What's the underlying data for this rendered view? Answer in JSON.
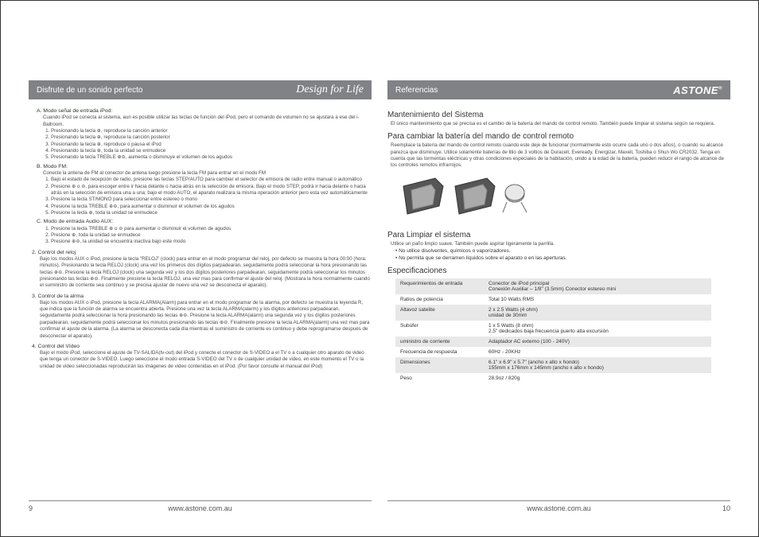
{
  "left": {
    "headerTitle": "Disfrute de un sonido perfecto",
    "headerScript": "Design for Life",
    "modeA": {
      "label": "A. Modo señal de entrada iPod:",
      "desc": "Cuando iPod se conecta al sistema, aun es posible utilizar las teclas de función del iPod, pero el comando de volumen no se ajustara a ese del i-Ballroom.",
      "items": [
        "Presionando la tecla ⊕, reproduce la canción anterior",
        "Presionando la tecla ⊕, reproduce la canción posterior",
        "Presionando la tecla ⊕, reproduce o pausa el iPod",
        "Presionando la tecla ⊕, toda la unidad se enmudece",
        "Presionando la tecla TREBLE ⊕⊖, aumenta o disminuye el volumen de los agudos"
      ]
    },
    "modeB": {
      "label": "B. Modo FM:",
      "desc": "Conecte la antena de FM al conector de antena luego presione la tecla FM para entrar en el modo FM",
      "items": [
        "Bajo el estado de recepción de radio, presione las teclas STEP/AUTO para cambiar el selector de emisora de radio entre manual o automático",
        "Presione ⊕ o ⊖, para escoger entre ir hacia delante o hacia atrás en la selección de emisora. Bajo el modo STEP, podrá ir hacia delante o hacia atrás en la selección de emisora una a una; bajo el modo AUTO, el aparato realizara la misma operación anterior pero esta vez automáticamente",
        "Presione la tecla ST/MONO para seleccionar entre estereo o mono",
        "Presione la tecla TREBLE ⊕⊖, para aumentar o disminuir el volumen de los agudos",
        "Presione la tecla ⊕, toda la unidad se enmudece"
      ]
    },
    "modeC": {
      "label": "C. Modo de entrada Audio AUX:",
      "items": [
        "Presione la tecla TREBLE ⊕ o ⊖ para aumentar o disminuir el volumen de agudos",
        "Presione ⊕, toda la unidad se enmudece",
        "Presione ⊕⊖, la unidad se encuentra inactiva bajo este modo"
      ]
    },
    "sec2": {
      "label": "2. Control del reloj",
      "desc": "Bajo los modos AUX o iPod, presione la tecla \"RELOJ\" (clock) para entrar en el modo programar del reloj, por defecto se muestra la hora 00:00 (hora: minutos). Presionando la tecla RELOJ (clock) una vez los primeros dos dígitos parpadearan, seguidamente podrá seleccionar la hora presionando las teclas ⊕⊖. Presione la tecla RELOJ (clock) una segunda vez y los dos dígitos posteriores parpadearan, seguidamente podrá seleccionar los minutos presionando las teclas ⊕⊖. Finalmente presione la tecla RELOJ, una vez mas para confirmar el ajuste del reloj. (Mostrara la hora normalmente cuando el suministro de corriente sea continuo y se precisa ajustar de nuevo una vez se desconecta el aparato)."
    },
    "sec3": {
      "label": "3. Control de la alrma",
      "desc": "Bajo los modos AUX o iPod, presione la tecla ALARMA(Alarm) para entrar en el modo programar de la alarma, por defecto se muestra la leyenda R, que indica que la función de alarma se encuentra abierta. Presione una vez la tecla ALARMA(alarm) y los dígitos anteriores parpadearan, seguidamente podrá seleccionar la hora presionando las teclas ⊕⊖. Presione la tecla ALARMA(alarm) una segunda vez y los dígitos posteriores parpadearan, seguidamente podrá seleccionar los minutos presionando las teclas ⊕⊖. Finalmente presione la tecla ALARMA(alarm) una vez mas para confirmar el ajuste de la alarma. (La alarma se desconecta cada día mientras el suministro de corriente es continuo y debe reprogramarse después de desconectar el aparato)."
    },
    "sec4": {
      "label": "4. Control del Vídeo",
      "desc": "Bajo el modo iPod, seleccione el ajuste de TV-SALIDA(tv-out) del iPod y conecte el conector de S-VIDEO a el TV o a cualquier otro aparato de video que tenga un conector de S-VIDEO. Luego seleccione el modo entrada S-VIDEO del TV o de cualquier unidad de video, en este momento el TV o la unidad de video seleccionadas reproducirán las imágenes de video contenidas en el iPod. (Por favor consulte el manual del iPod)"
    },
    "pageNum": "9",
    "url": "www.astone.com.au"
  },
  "right": {
    "headerTitle": "Referencias",
    "headerLogo": "ASTONE",
    "maint": {
      "title": "Mantenimiento del Sistema",
      "body": "El único mantenimiento que se precisa es el cambio de la batería del mando de control remoto. También puede limpiar el sistema según se requiera."
    },
    "battery": {
      "title": "Para cambiar la batería del mando de control remoto",
      "body": "Reemplace la batería del mando de control remoto cuando este deje de funcionar (normalmente esto ocurre cada uno o dos años), o cuando su alcance parezca que disminuye. Utilice solamente baterías de litio de 3 voltios de Duracell, Eveready, Energizar, Maxell, Toshiba o Shun Wo CR2032. Tenga en cuenta que las tormentas eléctricas y otras condiciones especiales de la habitación, unido a la edad de la batería, pueden reducir el rango de alcance de los controles remotos infrarrojos."
    },
    "clean": {
      "title": "Para Limpiar el sistema",
      "body": "Utilice un paño limpio suave. También puede aspirar ligeramente la parrilla.",
      "b1": "• No utilice disolventes, químicos o vaporizadores.",
      "b2": "• No permita que se derramen líquidos sobre el aparato o en las aperturas."
    },
    "specs": {
      "title": "Especificaciones",
      "rows": [
        [
          "Requerimientos de entrada",
          "Conector de iPod principal\nConexión Auxiliar – 1/8\" (3.5mm) Conector estereo mini"
        ],
        [
          "Ratios de potencia",
          "Total 10 Watts RMS"
        ],
        [
          "Altavoz satelite",
          "2 x 2.5 Watts (4 ohm)\nunidad de 30mm"
        ],
        [
          "Subúfer",
          "1 x 5 Watts (8 ohm)\n2.5\" dedicados baja frecuencia puerto alta excursión"
        ],
        [
          "uministro de corriente",
          "Adaptador AC externo (100 - 240V)"
        ],
        [
          "Frecuencia de respuesta",
          "60Hz - 20KHz"
        ],
        [
          "Dimensiones",
          "6.1\" x 6.9\" x 5.7\" (ancho x alto x hondo)\n155mm x 176mm x 145mm (ancho x alto x hondo)"
        ],
        [
          "Peso",
          "28.9oz / 820g"
        ]
      ]
    },
    "pageNum": "10",
    "url": "www.astone.com.au"
  }
}
